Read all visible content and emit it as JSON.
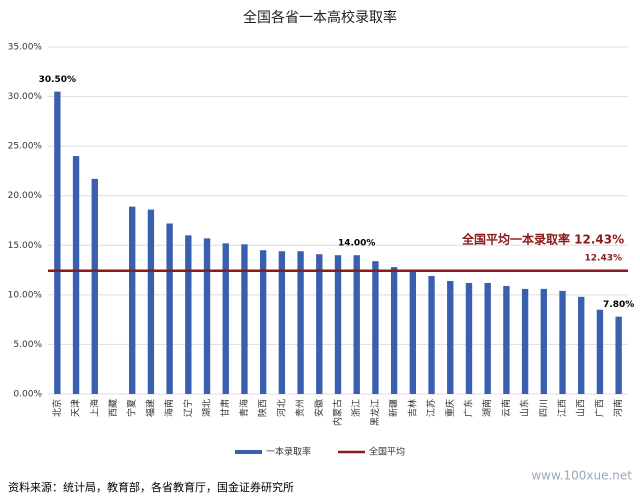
{
  "chart_data": {
    "type": "bar",
    "title": "全国各省一本高校录取率",
    "categories": [
      "北京",
      "天津",
      "上海",
      "西藏",
      "宁夏",
      "福建",
      "海南",
      "辽宁",
      "湖北",
      "甘肃",
      "青海",
      "陕西",
      "河北",
      "贵州",
      "安徽",
      "内蒙古",
      "浙江",
      "黑龙江",
      "新疆",
      "吉林",
      "江苏",
      "重庆",
      "广东",
      "湖南",
      "云南",
      "山东",
      "四川",
      "江西",
      "山西",
      "广西",
      "河南"
    ],
    "series": [
      {
        "name": "一本录取率",
        "color": "#3a5fae",
        "values": [
          30.5,
          24.0,
          21.7,
          null,
          18.9,
          18.6,
          17.2,
          16.0,
          15.7,
          15.2,
          15.1,
          14.5,
          14.4,
          14.4,
          14.1,
          14.0,
          14.0,
          13.4,
          12.8,
          12.4,
          11.9,
          11.4,
          11.2,
          11.2,
          10.9,
          10.6,
          10.6,
          10.4,
          9.8,
          8.5,
          7.8
        ],
        "value_labels": [
          "30.50%",
          null,
          null,
          null,
          null,
          null,
          null,
          null,
          null,
          null,
          null,
          null,
          null,
          null,
          null,
          null,
          "14.00%",
          null,
          null,
          null,
          null,
          null,
          null,
          null,
          null,
          null,
          null,
          null,
          null,
          null,
          "7.80%"
        ]
      }
    ],
    "average": {
      "name": "全国平均",
      "value": 12.43,
      "color": "#8b1a1a",
      "label": "12.43%",
      "annotation": "全国平均一本录取率 12.43%"
    },
    "ylim": [
      0,
      35
    ],
    "yticks": [
      {
        "value": 0,
        "label": "0.00%"
      },
      {
        "value": 5,
        "label": "5.00%"
      },
      {
        "value": 10,
        "label": "10.00%"
      },
      {
        "value": 15,
        "label": "15.00%"
      },
      {
        "value": 20,
        "label": "20.00%"
      },
      {
        "value": 25,
        "label": "25.00%"
      },
      {
        "value": 30,
        "label": "30.00%"
      },
      {
        "value": 35,
        "label": "35.00%"
      }
    ],
    "grid": true,
    "source": "资料来源：统计局，教育部，各省教育厅，国金证券研究所",
    "watermark": "www.100xue.net"
  }
}
